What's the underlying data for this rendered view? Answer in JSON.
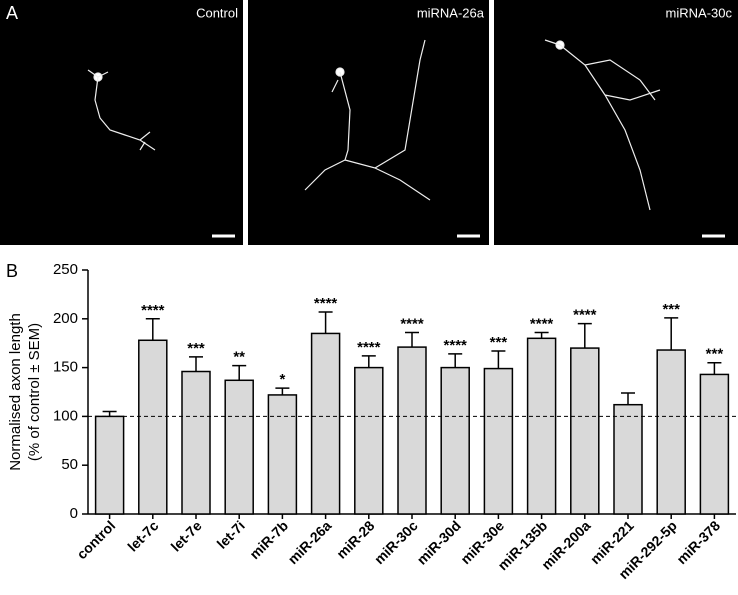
{
  "panel_a": {
    "label": "A",
    "images": [
      {
        "label": "Control"
      },
      {
        "label": "miRNA-26a"
      },
      {
        "label": "miRNA-30c"
      }
    ]
  },
  "chart_data": {
    "type": "bar",
    "panel_label": "B",
    "y_label": [
      "Normalised axon length",
      "(% of control ± SEM)"
    ],
    "categories": [
      "control",
      "let-7c",
      "let-7e",
      "let-7i",
      "miR-7b",
      "miR-26a",
      "miR-28",
      "miR-30c",
      "miR-30d",
      "miR-30e",
      "miR-135b",
      "miR-200a",
      "miR-221",
      "miR-292-5p",
      "miR-378"
    ],
    "values": [
      100,
      178,
      146,
      137,
      122,
      185,
      150,
      171,
      150,
      149,
      180,
      170,
      112,
      168,
      143
    ],
    "errors": [
      5,
      22,
      15,
      15,
      7,
      22,
      12,
      15,
      14,
      18,
      6,
      25,
      12,
      33,
      12
    ],
    "annotations": [
      null,
      "****",
      "***",
      "**",
      "*",
      "****",
      "****",
      "****",
      "****",
      "***",
      "****",
      "****",
      null,
      "***",
      "***"
    ],
    "color": "#d9d9d9",
    "reference_line": 100,
    "ylim": [
      0,
      250
    ],
    "yticks": [
      0,
      50,
      100,
      150,
      200,
      250
    ]
  }
}
